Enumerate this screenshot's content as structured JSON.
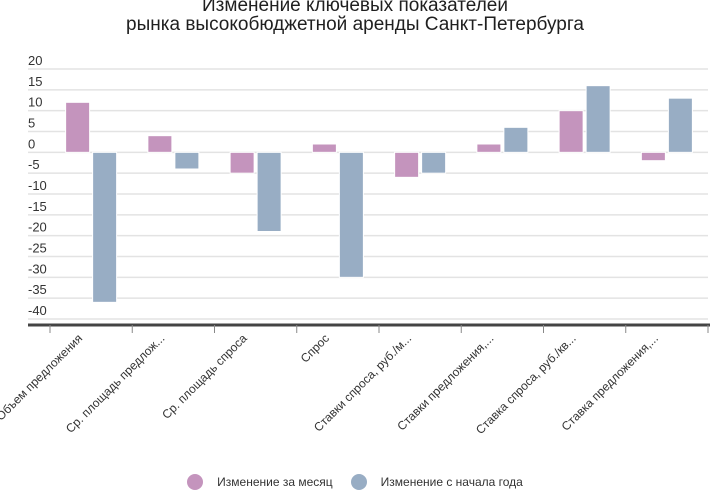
{
  "chart_data": {
    "type": "bar",
    "title": [
      "Изменение ключевых показателей",
      "рынка высокобюджетной аренды Санкт-Петербурга"
    ],
    "xlabel": "",
    "ylabel": "",
    "ylim": [
      -40,
      20
    ],
    "yticks": [
      "20",
      "15",
      "10",
      "5",
      "0",
      "-5",
      "-10",
      "-15",
      "-20",
      "-25",
      "-30",
      "-35",
      "-40"
    ],
    "ytick_values": [
      20,
      15,
      10,
      5,
      0,
      -5,
      -10,
      -15,
      -20,
      -25,
      -30,
      -35,
      -40
    ],
    "grid": true,
    "legend_position": "bottom",
    "categories": [
      "Объем предложения",
      "Ср. площадь предлож...",
      "Ср. площадь спроса",
      "Спрос",
      "Ставки спроса, руб./м...",
      "Ставки предложения,...",
      "Ставка спроса, руб./кв...",
      "Ставка предложения,..."
    ],
    "series": [
      {
        "name": "Изменение за месяц",
        "color": "#c494bd",
        "values": [
          12,
          4,
          -5,
          2,
          -6,
          2,
          10,
          -2
        ]
      },
      {
        "name": "Изменение с начала года",
        "color": "#98adc4",
        "values": [
          -36,
          -4,
          -19,
          -30,
          -5,
          6,
          16,
          13
        ]
      }
    ]
  }
}
